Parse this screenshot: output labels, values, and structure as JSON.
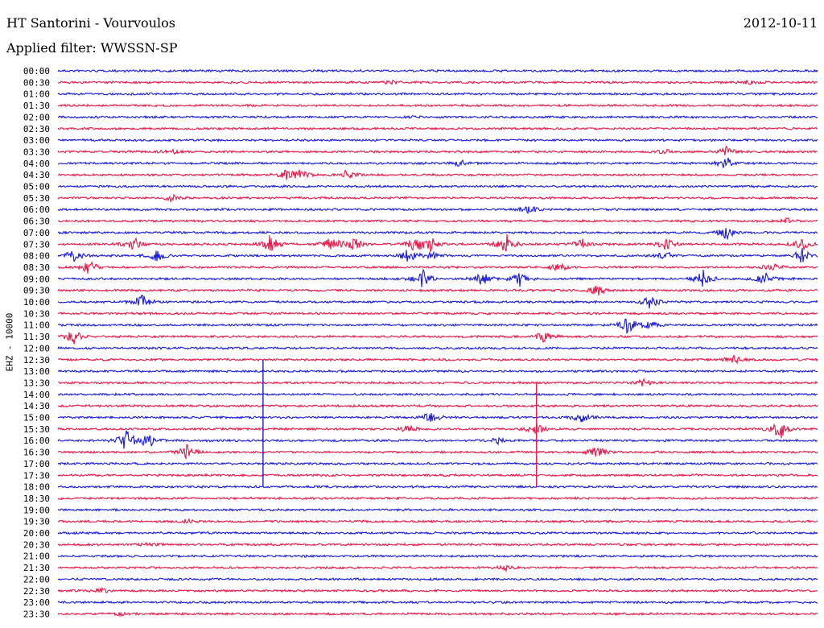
{
  "header": {
    "station": "HT Santorini - Vourvoulos",
    "date": "2012-10-11",
    "filter": "Applied filter: WWSSN-SP"
  },
  "chart_data": {
    "type": "line",
    "title": "HT Santorini - Vourvoulos",
    "ylabel": "EHZ - 10000",
    "trace_colors": [
      "#1a1ad6",
      "#e8184a"
    ],
    "rows": [
      {
        "label": "00:00",
        "color": "#1a1ad6",
        "events": []
      },
      {
        "label": "00:30",
        "color": "#e8184a",
        "events": [
          {
            "x": 0.44,
            "amp": 2
          },
          {
            "x": 0.91,
            "amp": 2
          }
        ]
      },
      {
        "label": "01:00",
        "color": "#1a1ad6",
        "events": []
      },
      {
        "label": "01:30",
        "color": "#e8184a",
        "events": []
      },
      {
        "label": "02:00",
        "color": "#1a1ad6",
        "events": [
          {
            "x": 0.47,
            "amp": 1
          }
        ]
      },
      {
        "label": "02:30",
        "color": "#e8184a",
        "events": []
      },
      {
        "label": "03:00",
        "color": "#1a1ad6",
        "events": []
      },
      {
        "label": "03:30",
        "color": "#e8184a",
        "events": [
          {
            "x": 0.15,
            "amp": 3
          },
          {
            "x": 0.8,
            "amp": 3
          },
          {
            "x": 0.88,
            "amp": 6
          }
        ]
      },
      {
        "label": "04:00",
        "color": "#1a1ad6",
        "events": [
          {
            "x": 0.53,
            "amp": 4
          },
          {
            "x": 0.88,
            "amp": 10
          }
        ]
      },
      {
        "label": "04:30",
        "color": "#e8184a",
        "events": [
          {
            "x": 0.3,
            "amp": 6
          },
          {
            "x": 0.32,
            "amp": 7
          },
          {
            "x": 0.38,
            "amp": 6
          }
        ]
      },
      {
        "label": "05:00",
        "color": "#1a1ad6",
        "events": []
      },
      {
        "label": "05:30",
        "color": "#e8184a",
        "events": [
          {
            "x": 0.15,
            "amp": 4
          }
        ]
      },
      {
        "label": "06:00",
        "color": "#1a1ad6",
        "events": [
          {
            "x": 0.62,
            "amp": 6
          }
        ]
      },
      {
        "label": "06:30",
        "color": "#e8184a",
        "events": [
          {
            "x": 0.96,
            "amp": 3
          }
        ]
      },
      {
        "label": "07:00",
        "color": "#1a1ad6",
        "events": [
          {
            "x": 0.88,
            "amp": 8
          }
        ]
      },
      {
        "label": "07:30",
        "color": "#e8184a",
        "events": [
          {
            "x": 0.1,
            "amp": 9
          },
          {
            "x": 0.28,
            "amp": 12
          },
          {
            "x": 0.36,
            "amp": 10
          },
          {
            "x": 0.39,
            "amp": 9
          },
          {
            "x": 0.47,
            "amp": 11
          },
          {
            "x": 0.49,
            "amp": 10
          },
          {
            "x": 0.59,
            "amp": 13
          },
          {
            "x": 0.69,
            "amp": 7
          },
          {
            "x": 0.8,
            "amp": 8
          },
          {
            "x": 0.98,
            "amp": 8
          }
        ]
      },
      {
        "label": "08:00",
        "color": "#1a1ad6",
        "events": [
          {
            "x": 0.02,
            "amp": 8
          },
          {
            "x": 0.13,
            "amp": 8
          },
          {
            "x": 0.46,
            "amp": 8
          },
          {
            "x": 0.49,
            "amp": 6
          },
          {
            "x": 0.8,
            "amp": 5
          },
          {
            "x": 0.98,
            "amp": 10
          }
        ]
      },
      {
        "label": "08:30",
        "color": "#e8184a",
        "events": [
          {
            "x": 0.04,
            "amp": 9
          },
          {
            "x": 0.66,
            "amp": 6
          },
          {
            "x": 0.94,
            "amp": 7
          }
        ]
      },
      {
        "label": "09:00",
        "color": "#1a1ad6",
        "events": [
          {
            "x": 0.48,
            "amp": 12
          },
          {
            "x": 0.56,
            "amp": 10
          },
          {
            "x": 0.61,
            "amp": 12
          },
          {
            "x": 0.85,
            "amp": 11
          },
          {
            "x": 0.93,
            "amp": 8
          }
        ]
      },
      {
        "label": "09:30",
        "color": "#e8184a",
        "events": [
          {
            "x": 0.71,
            "amp": 7
          }
        ]
      },
      {
        "label": "10:00",
        "color": "#1a1ad6",
        "events": [
          {
            "x": 0.11,
            "amp": 10
          },
          {
            "x": 0.78,
            "amp": 9
          }
        ]
      },
      {
        "label": "10:30",
        "color": "#e8184a",
        "events": []
      },
      {
        "label": "11:00",
        "color": "#1a1ad6",
        "events": [
          {
            "x": 0.75,
            "amp": 10
          },
          {
            "x": 0.78,
            "amp": 8
          }
        ]
      },
      {
        "label": "11:30",
        "color": "#e8184a",
        "events": [
          {
            "x": 0.02,
            "amp": 11
          },
          {
            "x": 0.64,
            "amp": 7
          }
        ]
      },
      {
        "label": "12:00",
        "color": "#1a1ad6",
        "events": []
      },
      {
        "label": "12:30",
        "color": "#e8184a",
        "events": [
          {
            "x": 0.89,
            "amp": 5
          }
        ]
      },
      {
        "label": "13:00",
        "color": "#1a1ad6",
        "events": []
      },
      {
        "label": "13:30",
        "color": "#e8184a",
        "events": [
          {
            "x": 0.77,
            "amp": 4
          }
        ]
      },
      {
        "label": "14:00",
        "color": "#1a1ad6",
        "events": []
      },
      {
        "label": "14:30",
        "color": "#e8184a",
        "events": []
      },
      {
        "label": "15:00",
        "color": "#1a1ad6",
        "events": [
          {
            "x": 0.49,
            "amp": 8
          },
          {
            "x": 0.69,
            "amp": 7
          }
        ]
      },
      {
        "label": "15:30",
        "color": "#e8184a",
        "events": [
          {
            "x": 0.46,
            "amp": 5
          },
          {
            "x": 0.63,
            "amp": 8
          },
          {
            "x": 0.95,
            "amp": 14
          }
        ]
      },
      {
        "label": "16:00",
        "color": "#1a1ad6",
        "events": [
          {
            "x": 0.09,
            "amp": 14
          },
          {
            "x": 0.12,
            "amp": 10
          },
          {
            "x": 0.58,
            "amp": 4
          }
        ]
      },
      {
        "label": "16:30",
        "color": "#e8184a",
        "events": [
          {
            "x": 0.17,
            "amp": 9
          },
          {
            "x": 0.71,
            "amp": 8
          }
        ]
      },
      {
        "label": "17:00",
        "color": "#1a1ad6",
        "events": []
      },
      {
        "label": "17:30",
        "color": "#e8184a",
        "events": []
      },
      {
        "label": "18:00",
        "color": "#1a1ad6",
        "events": []
      },
      {
        "label": "18:30",
        "color": "#e8184a",
        "events": []
      },
      {
        "label": "19:00",
        "color": "#1a1ad6",
        "events": []
      },
      {
        "label": "19:30",
        "color": "#e8184a",
        "events": [
          {
            "x": 0.17,
            "amp": 2
          }
        ]
      },
      {
        "label": "20:00",
        "color": "#1a1ad6",
        "events": []
      },
      {
        "label": "20:30",
        "color": "#e8184a",
        "events": [
          {
            "x": 0.12,
            "amp": 2
          }
        ]
      },
      {
        "label": "21:00",
        "color": "#1a1ad6",
        "events": []
      },
      {
        "label": "21:30",
        "color": "#e8184a",
        "events": [
          {
            "x": 0.59,
            "amp": 3
          }
        ]
      },
      {
        "label": "22:00",
        "color": "#1a1ad6",
        "events": []
      },
      {
        "label": "22:30",
        "color": "#e8184a",
        "events": [
          {
            "x": 0.06,
            "amp": 3
          }
        ]
      },
      {
        "label": "23:00",
        "color": "#1a1ad6",
        "events": []
      },
      {
        "label": "23:30",
        "color": "#e8184a",
        "events": [
          {
            "x": 0.08,
            "amp": 2
          }
        ]
      }
    ],
    "spikes": [
      {
        "x": 0.27,
        "from_row": 25,
        "to_row": 36,
        "color": "#1a1ad6"
      },
      {
        "x": 0.63,
        "from_row": 27,
        "to_row": 36,
        "color": "#e8184a"
      }
    ]
  }
}
